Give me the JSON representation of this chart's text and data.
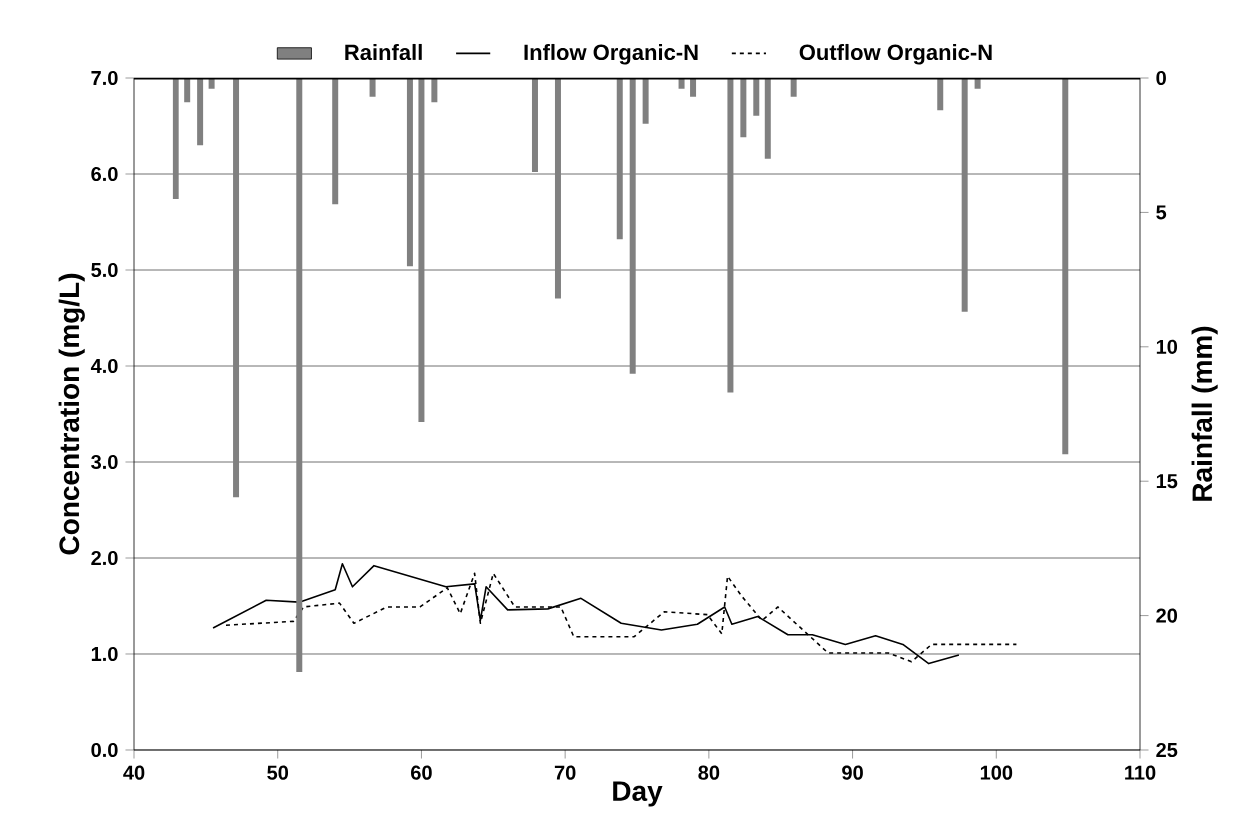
{
  "chart_data": {
    "type": "line",
    "xlabel": "Day",
    "ylabel": "Concentration  (mg/L)",
    "y2label": "Rainfall  (mm)",
    "xlim": [
      40,
      110
    ],
    "xticks": [
      40,
      50,
      60,
      70,
      80,
      90,
      100,
      110
    ],
    "ylim": [
      0,
      7
    ],
    "yticks": [
      {
        "value": 0,
        "label": "0.0"
      },
      {
        "value": 1,
        "label": "1.0"
      },
      {
        "value": 2,
        "label": "2.0"
      },
      {
        "value": 3,
        "label": "3.0"
      },
      {
        "value": 4,
        "label": "4.0"
      },
      {
        "value": 5,
        "label": "5.0"
      },
      {
        "value": 6,
        "label": "6.0"
      },
      {
        "value": 7,
        "label": "7.0"
      }
    ],
    "y2lim": [
      25,
      0
    ],
    "y2ticks": [
      0,
      5,
      10,
      15,
      20,
      25
    ],
    "grid": "y",
    "legend": "top",
    "series": [
      {
        "name": "Rainfall",
        "type": "bar",
        "axis": "y2",
        "color": "#808080",
        "x": [
          42.9,
          43.7,
          44.6,
          45.4,
          47.1,
          51.5,
          54.0,
          56.6,
          59.2,
          60.0,
          60.9,
          67.9,
          69.5,
          73.8,
          74.7,
          75.6,
          78.1,
          78.9,
          81.5,
          82.4,
          83.3,
          84.1,
          85.9,
          96.1,
          97.8,
          98.7,
          104.8
        ],
        "values": [
          4.5,
          0.9,
          2.5,
          0.4,
          15.6,
          22.1,
          4.7,
          0.7,
          7.0,
          12.8,
          0.9,
          3.5,
          8.2,
          6.0,
          11.0,
          1.7,
          0.4,
          0.7,
          11.7,
          2.2,
          1.4,
          3.0,
          0.7,
          1.2,
          8.7,
          0.4,
          14.0
        ]
      },
      {
        "name": "Inflow Organic-N",
        "line_style": "solid",
        "color": "#000000",
        "x": [
          45.5,
          49.2,
          51.5,
          54.0,
          54.5,
          55.2,
          56.7,
          61.7,
          63.7,
          64.1,
          64.5,
          66.0,
          68.8,
          71.1,
          73.9,
          76.7,
          79.2,
          81.1,
          81.6,
          83.4,
          85.5,
          87.2,
          89.5,
          91.6,
          93.5,
          95.3,
          97.4
        ],
        "values": [
          1.27,
          1.56,
          1.54,
          1.67,
          1.94,
          1.7,
          1.92,
          1.7,
          1.73,
          1.35,
          1.7,
          1.46,
          1.47,
          1.58,
          1.32,
          1.25,
          1.31,
          1.49,
          1.31,
          1.39,
          1.2,
          1.2,
          1.1,
          1.19,
          1.1,
          0.9,
          0.99
        ]
      },
      {
        "name": "Outflow Organic-N",
        "line_style": "dashed",
        "color": "#000000",
        "x": [
          46.4,
          51.1,
          51.8,
          54.3,
          55.3,
          57.6,
          59.9,
          61.8,
          62.7,
          63.7,
          64.1,
          65.0,
          66.5,
          69.7,
          70.6,
          74.8,
          76.9,
          79.9,
          80.9,
          81.3,
          82.3,
          83.7,
          84.8,
          88.3,
          92.5,
          94.1,
          95.5,
          101.4
        ],
        "values": [
          1.3,
          1.34,
          1.49,
          1.53,
          1.32,
          1.49,
          1.49,
          1.69,
          1.42,
          1.84,
          1.32,
          1.84,
          1.49,
          1.49,
          1.18,
          1.18,
          1.44,
          1.41,
          1.21,
          1.81,
          1.6,
          1.35,
          1.49,
          1.01,
          1.01,
          0.92,
          1.1,
          1.1
        ]
      }
    ]
  }
}
